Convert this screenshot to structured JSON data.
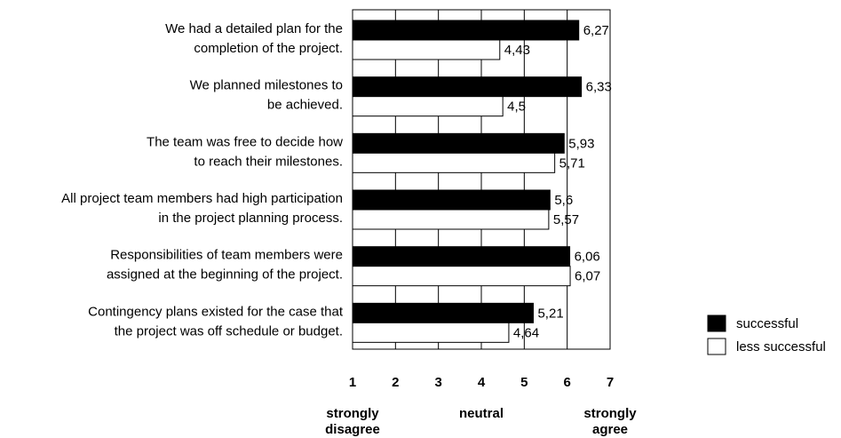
{
  "chart_data": {
    "type": "bar",
    "orientation": "horizontal",
    "categories": [
      [
        "We had a detailed plan for the",
        "completion of the project."
      ],
      [
        "We planned milestones to",
        "be achieved."
      ],
      [
        "The team was free to decide how",
        "to reach their milestones."
      ],
      [
        "All project team members had high participation",
        "in the project planning process."
      ],
      [
        "Responsibilities of team members were",
        "assigned at the beginning of the project."
      ],
      [
        "Contingency plans existed for the case that",
        "the project was off schedule or budget."
      ]
    ],
    "series": [
      {
        "name": "successful",
        "values": [
          6.27,
          6.33,
          5.93,
          5.6,
          6.06,
          5.21
        ],
        "labels": [
          "6,27",
          "6,33",
          "5,93",
          "5,6",
          "6,06",
          "5,21"
        ],
        "color": "#000000"
      },
      {
        "name": "less successful",
        "values": [
          4.43,
          4.5,
          5.71,
          5.57,
          6.07,
          4.64
        ],
        "labels": [
          "4,43",
          "4,5",
          "5,71",
          "5,57",
          "6,07",
          "4,64"
        ],
        "color": "#ffffff"
      }
    ],
    "xlim": [
      1,
      7
    ],
    "xticks": [
      "1",
      "2",
      "3",
      "4",
      "5",
      "6",
      "7"
    ],
    "scale_anchors": [
      {
        "value": 1,
        "lines": [
          "strongly",
          "disagree"
        ]
      },
      {
        "value": 4,
        "lines": [
          "neutral"
        ]
      },
      {
        "value": 7,
        "lines": [
          "strongly",
          "agree"
        ]
      }
    ],
    "grid": true,
    "legend_position": "right"
  }
}
